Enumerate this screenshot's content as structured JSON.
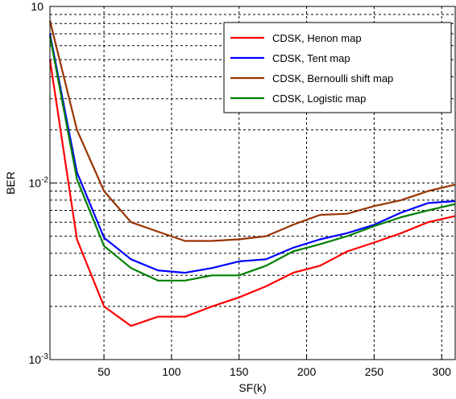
{
  "chart_data": {
    "type": "line",
    "xlabel": "SF(k)",
    "ylabel": "BER",
    "xlim": [
      10,
      310
    ],
    "ylim": [
      0.001,
      0.1
    ],
    "yscale": "log",
    "grid": true,
    "legend_position": "top-right",
    "x_ticks": [
      {
        "value": 50,
        "label": "50"
      },
      {
        "value": 100,
        "label": "100"
      },
      {
        "value": 150,
        "label": "150"
      },
      {
        "value": 200,
        "label": "200"
      },
      {
        "value": 250,
        "label": "250"
      },
      {
        "value": 300,
        "label": "300"
      }
    ],
    "y_ticks": [
      {
        "value": 0.001,
        "base": "10",
        "exp": "-3"
      },
      {
        "value": 0.01,
        "base": "10",
        "exp": "-2"
      },
      {
        "value": 0.1,
        "base": "10",
        "exp": ""
      }
    ],
    "series": [
      {
        "name": "CDSK, Henon map",
        "color": "#ff0000",
        "x": [
          10,
          30,
          50,
          70,
          90,
          110,
          130,
          150,
          170,
          190,
          210,
          230,
          250,
          270,
          290,
          310
        ],
        "y": [
          0.05,
          0.0048,
          0.002,
          0.00155,
          0.00175,
          0.00175,
          0.002,
          0.00225,
          0.0026,
          0.0031,
          0.0034,
          0.0041,
          0.0046,
          0.0052,
          0.006,
          0.0065
        ]
      },
      {
        "name": "CDSK, Tent map",
        "color": "#0000ff",
        "x": [
          10,
          30,
          50,
          70,
          90,
          110,
          130,
          150,
          170,
          190,
          210,
          230,
          250,
          270,
          290,
          310
        ],
        "y": [
          0.07,
          0.0115,
          0.0049,
          0.0037,
          0.0032,
          0.0031,
          0.0033,
          0.0036,
          0.0037,
          0.0043,
          0.0048,
          0.0052,
          0.0058,
          0.0068,
          0.0077,
          0.0079
        ]
      },
      {
        "name": "CDSK, Bernoulli shift map",
        "color": "#993300",
        "x": [
          10,
          30,
          50,
          70,
          90,
          110,
          130,
          150,
          170,
          190,
          210,
          230,
          250,
          270,
          290,
          310
        ],
        "y": [
          0.083,
          0.02,
          0.009,
          0.006,
          0.0053,
          0.0047,
          0.0047,
          0.0048,
          0.005,
          0.0058,
          0.0066,
          0.0067,
          0.0074,
          0.008,
          0.009,
          0.0098
        ]
      },
      {
        "name": "CDSK, Logistic map",
        "color": "#008000",
        "x": [
          10,
          30,
          50,
          70,
          90,
          110,
          130,
          150,
          170,
          190,
          210,
          230,
          250,
          270,
          290,
          310
        ],
        "y": [
          0.068,
          0.0105,
          0.0044,
          0.0033,
          0.0028,
          0.0028,
          0.003,
          0.003,
          0.0034,
          0.0041,
          0.0045,
          0.005,
          0.0057,
          0.0064,
          0.007,
          0.0076
        ]
      }
    ]
  }
}
